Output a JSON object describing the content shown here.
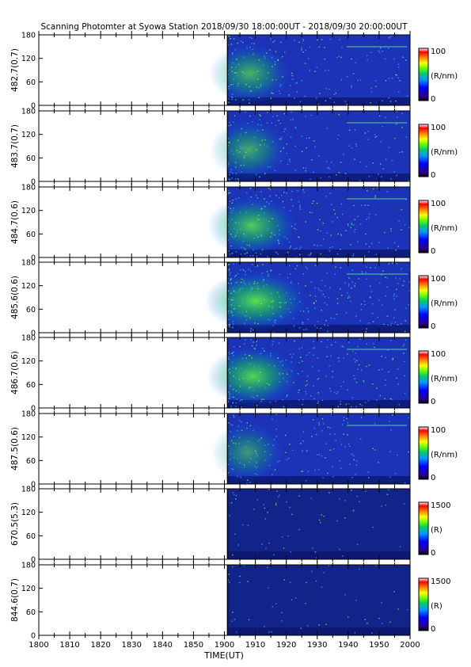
{
  "chart_data": {
    "type": "heatmap",
    "title": "Scanning Photomter at Syowa Station 2018/09/30 18:00:00UT - 2018/09/30 20:00:00UT",
    "xlabel": "TIME(UT)",
    "x_ticks": [
      "1800",
      "1810",
      "1820",
      "1830",
      "1840",
      "1850",
      "1900",
      "1910",
      "1920",
      "1930",
      "1940",
      "1950",
      "2000"
    ],
    "xlim": [
      "1800",
      "2000"
    ],
    "data_start": "1901",
    "ylim": [
      0,
      180
    ],
    "y_ticks": [
      "0",
      "60",
      "120",
      "180"
    ],
    "panels": [
      {
        "ylabel": "482.7(0.7)",
        "cbar_max": "100",
        "cbar_min": "0",
        "cbar_unit": "(R/nm)",
        "intensity": 0.6
      },
      {
        "ylabel": "483.7(0.7)",
        "cbar_max": "100",
        "cbar_min": "0",
        "cbar_unit": "(R/nm)",
        "intensity": 0.55
      },
      {
        "ylabel": "484.7(0.6)",
        "cbar_max": "100",
        "cbar_min": "0",
        "cbar_unit": "(R/nm)",
        "intensity": 0.75
      },
      {
        "ylabel": "485.6(0.6)",
        "cbar_max": "100",
        "cbar_min": "0",
        "cbar_unit": "(R/nm)",
        "intensity": 1.0
      },
      {
        "ylabel": "486.7(0.6)",
        "cbar_max": "100",
        "cbar_min": "0",
        "cbar_unit": "(R/nm)",
        "intensity": 0.8
      },
      {
        "ylabel": "487.5(0.6)",
        "cbar_max": "100",
        "cbar_min": "0",
        "cbar_unit": "(R/nm)",
        "intensity": 0.45
      },
      {
        "ylabel": "670.5(5.3)",
        "cbar_max": "1500",
        "cbar_min": "0",
        "cbar_unit": "(R)",
        "intensity": 0.1
      },
      {
        "ylabel": "844.6(0.7)",
        "cbar_max": "1500",
        "cbar_min": "0",
        "cbar_unit": "(R)",
        "intensity": 0.05
      }
    ],
    "colors": {
      "scale": [
        "#000000",
        "#2a0090",
        "#0000ff",
        "#0099ff",
        "#00cc66",
        "#66ff00",
        "#ffff00",
        "#ff8800",
        "#ff0000",
        "#ffffff"
      ],
      "background": "#1a2fb0"
    }
  }
}
